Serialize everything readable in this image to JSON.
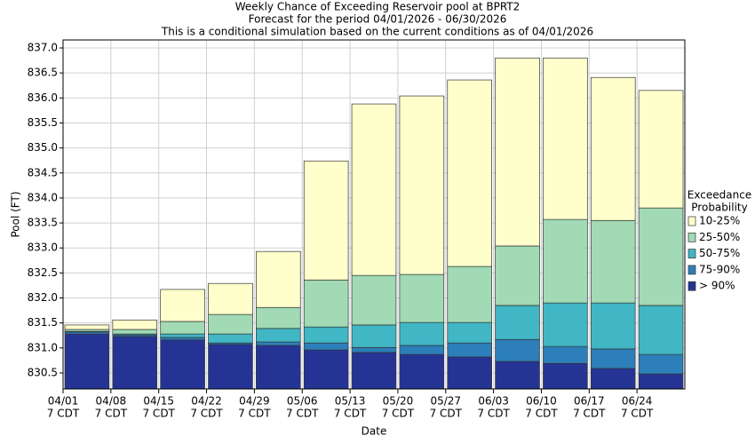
{
  "chart_data": {
    "type": "floating-bar",
    "title": [
      "Weekly Chance of Exceeding Reservoir pool at BPRT2",
      "Forecast for the period 04/01/2026 - 06/30/2026",
      "This is a conditional simulation based on the current conditions as of 04/01/2026"
    ],
    "x_label": "Date",
    "y_label": "Pool (FT)",
    "categories": [
      [
        "04/01",
        "7 CDT"
      ],
      [
        "04/08",
        "7 CDT"
      ],
      [
        "04/15",
        "7 CDT"
      ],
      [
        "04/22",
        "7 CDT"
      ],
      [
        "04/29",
        "7 CDT"
      ],
      [
        "05/06",
        "7 CDT"
      ],
      [
        "05/13",
        "7 CDT"
      ],
      [
        "05/20",
        "7 CDT"
      ],
      [
        "05/27",
        "7 CDT"
      ],
      [
        "06/03",
        "7 CDT"
      ],
      [
        "06/10",
        "7 CDT"
      ],
      [
        "06/17",
        "7 CDT"
      ],
      [
        "06/24",
        "7 CDT"
      ]
    ],
    "legend_title": [
      "Exceedance",
      "Probability"
    ],
    "series": [
      {
        "name": "> 90%",
        "color": "#253494",
        "values": [
          831.28,
          831.23,
          831.16,
          831.07,
          831.05,
          830.96,
          830.91,
          830.87,
          830.82,
          830.73,
          830.69,
          830.59,
          830.48
        ]
      },
      {
        "name": "75-90%",
        "color": "#2c7fb8",
        "values": [
          831.32,
          831.26,
          831.21,
          831.1,
          831.12,
          831.1,
          831.01,
          831.05,
          831.1,
          831.17,
          831.03,
          830.98,
          830.87
        ]
      },
      {
        "name": "50-75%",
        "color": "#41b6c4",
        "values": [
          831.33,
          831.28,
          831.28,
          831.28,
          831.39,
          831.42,
          831.46,
          831.51,
          831.51,
          831.85,
          831.9,
          831.9,
          831.85
        ]
      },
      {
        "name": "25-50%",
        "color": "#a1dab4",
        "values": [
          831.37,
          831.37,
          831.53,
          831.67,
          831.81,
          832.36,
          832.45,
          832.47,
          832.63,
          833.04,
          833.57,
          833.55,
          833.8
        ]
      },
      {
        "name": "10-25%",
        "color": "#ffffcc",
        "values": [
          831.46,
          831.56,
          832.17,
          832.29,
          832.93,
          834.74,
          835.88,
          836.04,
          836.36,
          836.8,
          836.8,
          836.41,
          836.15
        ]
      }
    ],
    "ylim": [
      830.18,
      837.16
    ],
    "yticks": [
      830.5,
      {
        "value": 831,
        "label": "831.0"
      },
      831.5,
      {
        "value": 832,
        "label": "832.0"
      },
      832.5,
      {
        "value": 833,
        "label": "833.0"
      },
      833.5,
      {
        "value": 834,
        "label": "834.0"
      },
      834.5,
      {
        "value": 835,
        "label": "835.0"
      },
      835.5,
      {
        "value": 836,
        "label": "836.0"
      },
      836.5,
      {
        "value": 837,
        "label": "837.0"
      }
    ],
    "grid": true
  }
}
